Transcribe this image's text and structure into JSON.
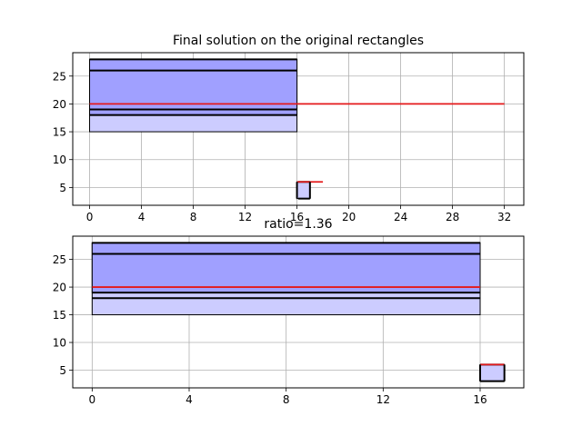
{
  "chart_data": [
    {
      "type": "rectangles",
      "title": "Final solution on the original rectangles",
      "xlim": [
        -1.3,
        33.5
      ],
      "ylim": [
        1.8,
        29.2
      ],
      "xticks": [
        0,
        4,
        8,
        12,
        16,
        20,
        24,
        28,
        32
      ],
      "yticks": [
        5,
        10,
        15,
        20,
        25
      ],
      "grid": true,
      "rectangles": [
        {
          "x": [
            0,
            16
          ],
          "y": [
            15,
            28
          ],
          "fill": "#ccccff"
        },
        {
          "x": [
            0,
            16
          ],
          "y": [
            18,
            28
          ],
          "fill": "#a0a0ff"
        },
        {
          "x": [
            16,
            17
          ],
          "y": [
            3,
            6
          ],
          "fill": "#ccccff"
        }
      ],
      "black_lines": [
        {
          "x": [
            0,
            16
          ],
          "y": 28
        },
        {
          "x": [
            0,
            16
          ],
          "y": 26
        },
        {
          "x": [
            0,
            16
          ],
          "y": 19
        },
        {
          "x": [
            0,
            16
          ],
          "y": 18
        },
        {
          "x": [
            16.1,
            17
          ],
          "y": 6
        },
        {
          "x": [
            16.1,
            17
          ],
          "y": 3
        }
      ],
      "red_lines": [
        {
          "x": [
            0,
            32
          ],
          "y": 20
        },
        {
          "x": [
            16,
            18
          ],
          "y": 6
        }
      ]
    },
    {
      "type": "rectangles",
      "title": "ratio=1.36",
      "xlim": [
        -0.8,
        17.8
      ],
      "ylim": [
        1.8,
        29.2
      ],
      "xticks": [
        0,
        4,
        8,
        12,
        16
      ],
      "yticks": [
        5,
        10,
        15,
        20,
        25
      ],
      "grid": true,
      "rectangles": [
        {
          "x": [
            0,
            16
          ],
          "y": [
            15,
            28
          ],
          "fill": "#ccccff"
        },
        {
          "x": [
            0,
            16
          ],
          "y": [
            19,
            28
          ],
          "fill": "#a0a0ff"
        },
        {
          "x": [
            16,
            17
          ],
          "y": [
            3,
            6
          ],
          "fill": "#ccccff"
        }
      ],
      "black_lines": [
        {
          "x": [
            0,
            16
          ],
          "y": 28
        },
        {
          "x": [
            0,
            16
          ],
          "y": 26
        },
        {
          "x": [
            0,
            16
          ],
          "y": 19
        },
        {
          "x": [
            0,
            16
          ],
          "y": 18
        },
        {
          "x": [
            16,
            17
          ],
          "y": 6
        },
        {
          "x": [
            16,
            17
          ],
          "y": 3
        }
      ],
      "red_lines": [
        {
          "x": [
            0,
            16
          ],
          "y": 20
        },
        {
          "x": [
            16,
            17
          ],
          "y": 6
        }
      ]
    }
  ]
}
